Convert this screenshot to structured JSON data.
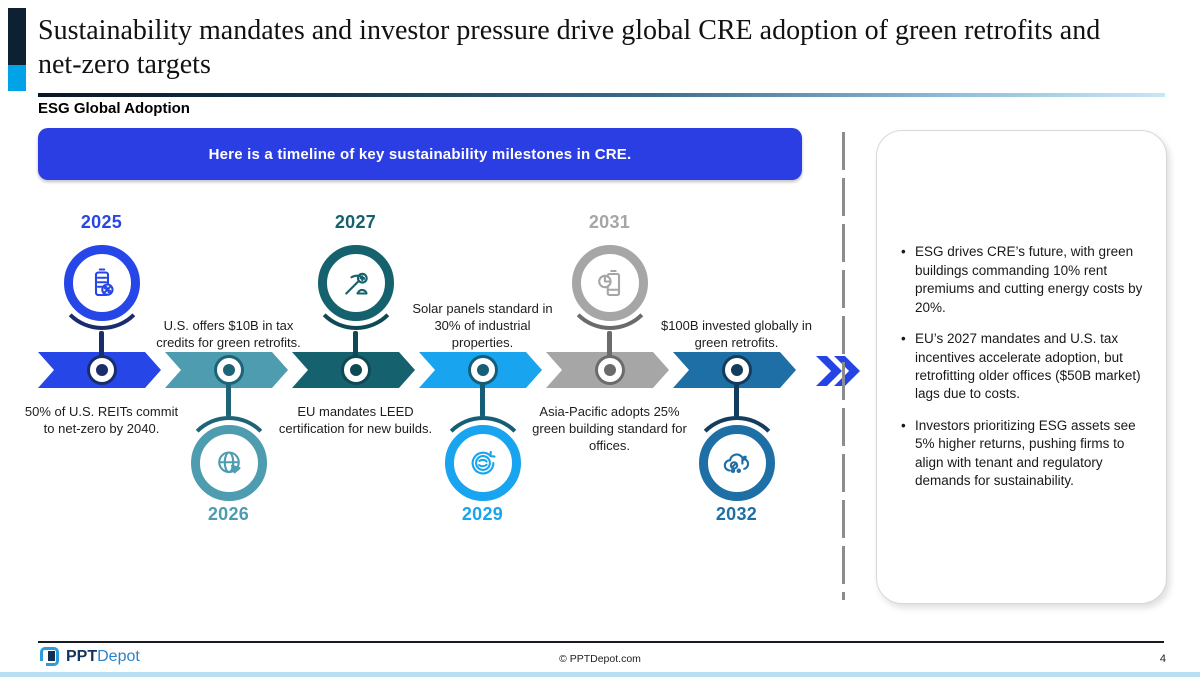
{
  "header": {
    "title": "Sustainability mandates and investor pressure drive global CRE adoption of green retrofits and net-zero targets",
    "section_label": "ESG Global Adoption"
  },
  "banner": {
    "text": "Here is a timeline of key sustainability milestones in CRE."
  },
  "timeline": {
    "milestones": [
      {
        "year": "2025",
        "side": "top",
        "text": "50% of U.S. REITs commit to net-zero by 2040.",
        "color": "#2646e8",
        "accent": "#1a2d6b",
        "icon": "battery-eco-icon"
      },
      {
        "year": "2026",
        "side": "bottom",
        "text": "U.S. offers $10B in tax credits for green retrofits.",
        "color": "#4e9cb0",
        "accent": "#1d6478",
        "icon": "globe-icon"
      },
      {
        "year": "2027",
        "side": "top",
        "text": "EU mandates LEED certification for new builds.",
        "color": "#15616d",
        "accent": "#0e4a54",
        "icon": "pickaxe-icon"
      },
      {
        "year": "2029",
        "side": "bottom",
        "text": "Solar panels standard in 30% of industrial properties.",
        "color": "#18a4ee",
        "accent": "#155e78",
        "icon": "globe-recycle-icon"
      },
      {
        "year": "2031",
        "side": "top",
        "text": "Asia-Pacific adopts 25% green building standard for offices.",
        "color": "#a6a6a6",
        "accent": "#6b6b6b",
        "icon": "battery-chart-icon"
      },
      {
        "year": "2032",
        "side": "bottom",
        "text": "$100B invested globally in green retrofits.",
        "color": "#1e6fa5",
        "accent": "#123d5e",
        "icon": "cloud-eco-icon"
      }
    ]
  },
  "insights": {
    "bullets": [
      "ESG drives CRE’s future, with green buildings commanding 10% rent premiums and cutting energy costs by 20%.",
      "EU’s 2027 mandates and U.S. tax incentives accelerate adoption, but retrofitting older offices ($50B market) lags due to costs.",
      "Investors prioritizing ESG assets see 5% higher returns, pushing firms to align with tenant and regulatory demands for sustainability."
    ]
  },
  "footer": {
    "logo_bold": "PPT",
    "logo_regular": "Depot",
    "copyright": "© PPTDepot.com",
    "page_number": "4"
  },
  "colors": {
    "banner_blue": "#2b3ee4",
    "accent_navy": "#0d2133",
    "accent_cyan": "#00a3e8",
    "separator_gray": "#8c8c8c",
    "continuation_chevron_blue": "#2444e4"
  }
}
